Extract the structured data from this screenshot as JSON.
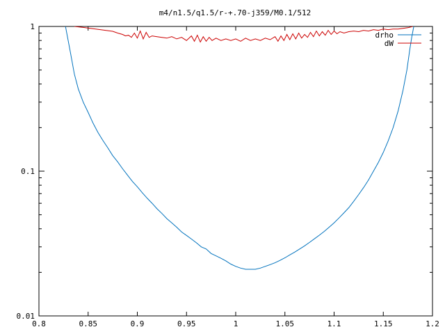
{
  "chart_data": {
    "type": "line",
    "title": "m4/n1.5/q1.5/r-+.70-j359/M0.1/512",
    "xlabel": "",
    "ylabel": "",
    "xlim": [
      0.8,
      1.2
    ],
    "ylim": [
      0.01,
      1
    ],
    "yscale": "log",
    "grid": false,
    "legend_position": "top-right",
    "x_ticks": [
      {
        "value": 0.8,
        "label": "0.8"
      },
      {
        "value": 0.85,
        "label": "0.85"
      },
      {
        "value": 0.9,
        "label": "0.9"
      },
      {
        "value": 0.95,
        "label": "0.95"
      },
      {
        "value": 1.0,
        "label": "1"
      },
      {
        "value": 1.05,
        "label": "1.05"
      },
      {
        "value": 1.1,
        "label": "1.1"
      },
      {
        "value": 1.15,
        "label": "1.15"
      },
      {
        "value": 1.2,
        "label": "1.2"
      }
    ],
    "y_ticks": [
      {
        "value": 0.01,
        "label": "0.01"
      },
      {
        "value": 0.1,
        "label": "0.1"
      },
      {
        "value": 1,
        "label": "1"
      }
    ],
    "series": [
      {
        "name": "drho",
        "color": "#0072bd",
        "points": [
          [
            0.827,
            1.0
          ],
          [
            0.832,
            0.66
          ],
          [
            0.836,
            0.47
          ],
          [
            0.84,
            0.37
          ],
          [
            0.845,
            0.3
          ],
          [
            0.85,
            0.255
          ],
          [
            0.855,
            0.215
          ],
          [
            0.86,
            0.185
          ],
          [
            0.865,
            0.163
          ],
          [
            0.87,
            0.145
          ],
          [
            0.875,
            0.128
          ],
          [
            0.88,
            0.116
          ],
          [
            0.885,
            0.104
          ],
          [
            0.89,
            0.094
          ],
          [
            0.895,
            0.085
          ],
          [
            0.9,
            0.078
          ],
          [
            0.905,
            0.071
          ],
          [
            0.91,
            0.065
          ],
          [
            0.915,
            0.06
          ],
          [
            0.92,
            0.055
          ],
          [
            0.925,
            0.051
          ],
          [
            0.93,
            0.047
          ],
          [
            0.935,
            0.044
          ],
          [
            0.94,
            0.041
          ],
          [
            0.945,
            0.038
          ],
          [
            0.95,
            0.036
          ],
          [
            0.955,
            0.034
          ],
          [
            0.96,
            0.032
          ],
          [
            0.965,
            0.03
          ],
          [
            0.97,
            0.029
          ],
          [
            0.975,
            0.027
          ],
          [
            0.98,
            0.026
          ],
          [
            0.985,
            0.025
          ],
          [
            0.99,
            0.024
          ],
          [
            0.995,
            0.0228
          ],
          [
            1.0,
            0.022
          ],
          [
            1.005,
            0.0214
          ],
          [
            1.01,
            0.021
          ],
          [
            1.015,
            0.021
          ],
          [
            1.02,
            0.021
          ],
          [
            1.025,
            0.0214
          ],
          [
            1.03,
            0.022
          ],
          [
            1.035,
            0.0226
          ],
          [
            1.04,
            0.0233
          ],
          [
            1.045,
            0.0242
          ],
          [
            1.05,
            0.0252
          ],
          [
            1.055,
            0.0264
          ],
          [
            1.06,
            0.0276
          ],
          [
            1.065,
            0.029
          ],
          [
            1.07,
            0.0305
          ],
          [
            1.075,
            0.0322
          ],
          [
            1.08,
            0.0341
          ],
          [
            1.085,
            0.0361
          ],
          [
            1.09,
            0.0384
          ],
          [
            1.095,
            0.041
          ],
          [
            1.1,
            0.044
          ],
          [
            1.105,
            0.0475
          ],
          [
            1.11,
            0.0515
          ],
          [
            1.115,
            0.056
          ],
          [
            1.12,
            0.062
          ],
          [
            1.125,
            0.069
          ],
          [
            1.13,
            0.077
          ],
          [
            1.135,
            0.087
          ],
          [
            1.14,
            0.1
          ],
          [
            1.145,
            0.115
          ],
          [
            1.15,
            0.135
          ],
          [
            1.155,
            0.162
          ],
          [
            1.16,
            0.2
          ],
          [
            1.165,
            0.26
          ],
          [
            1.17,
            0.36
          ],
          [
            1.174,
            0.5
          ],
          [
            1.177,
            0.7
          ],
          [
            1.179,
            0.85
          ],
          [
            1.181,
            1.0
          ]
        ]
      },
      {
        "name": "dW",
        "color": "#cc0000",
        "points": [
          [
            0.836,
            1.0
          ],
          [
            0.845,
            0.985
          ],
          [
            0.855,
            0.965
          ],
          [
            0.865,
            0.945
          ],
          [
            0.875,
            0.925
          ],
          [
            0.88,
            0.9
          ],
          [
            0.885,
            0.88
          ],
          [
            0.888,
            0.86
          ],
          [
            0.891,
            0.87
          ],
          [
            0.894,
            0.84
          ],
          [
            0.897,
            0.9
          ],
          [
            0.9,
            0.83
          ],
          [
            0.903,
            0.93
          ],
          [
            0.906,
            0.82
          ],
          [
            0.909,
            0.91
          ],
          [
            0.912,
            0.84
          ],
          [
            0.915,
            0.86
          ],
          [
            0.92,
            0.85
          ],
          [
            0.925,
            0.84
          ],
          [
            0.93,
            0.83
          ],
          [
            0.935,
            0.85
          ],
          [
            0.94,
            0.82
          ],
          [
            0.945,
            0.84
          ],
          [
            0.95,
            0.8
          ],
          [
            0.955,
            0.86
          ],
          [
            0.958,
            0.79
          ],
          [
            0.961,
            0.87
          ],
          [
            0.964,
            0.78
          ],
          [
            0.967,
            0.85
          ],
          [
            0.97,
            0.79
          ],
          [
            0.973,
            0.84
          ],
          [
            0.976,
            0.8
          ],
          [
            0.98,
            0.83
          ],
          [
            0.985,
            0.8
          ],
          [
            0.99,
            0.82
          ],
          [
            0.995,
            0.8
          ],
          [
            1.0,
            0.82
          ],
          [
            1.005,
            0.79
          ],
          [
            1.01,
            0.83
          ],
          [
            1.015,
            0.8
          ],
          [
            1.02,
            0.82
          ],
          [
            1.025,
            0.8
          ],
          [
            1.03,
            0.83
          ],
          [
            1.035,
            0.81
          ],
          [
            1.04,
            0.85
          ],
          [
            1.043,
            0.79
          ],
          [
            1.046,
            0.86
          ],
          [
            1.049,
            0.8
          ],
          [
            1.052,
            0.88
          ],
          [
            1.055,
            0.81
          ],
          [
            1.058,
            0.89
          ],
          [
            1.061,
            0.82
          ],
          [
            1.064,
            0.9
          ],
          [
            1.067,
            0.83
          ],
          [
            1.07,
            0.88
          ],
          [
            1.073,
            0.84
          ],
          [
            1.076,
            0.91
          ],
          [
            1.079,
            0.85
          ],
          [
            1.082,
            0.93
          ],
          [
            1.085,
            0.86
          ],
          [
            1.088,
            0.92
          ],
          [
            1.091,
            0.87
          ],
          [
            1.094,
            0.94
          ],
          [
            1.097,
            0.88
          ],
          [
            1.1,
            0.93
          ],
          [
            1.103,
            0.89
          ],
          [
            1.106,
            0.92
          ],
          [
            1.11,
            0.9
          ],
          [
            1.115,
            0.92
          ],
          [
            1.12,
            0.93
          ],
          [
            1.125,
            0.92
          ],
          [
            1.13,
            0.94
          ],
          [
            1.135,
            0.93
          ],
          [
            1.14,
            0.95
          ],
          [
            1.145,
            0.94
          ],
          [
            1.15,
            0.96
          ],
          [
            1.155,
            0.95
          ],
          [
            1.16,
            0.96
          ],
          [
            1.165,
            0.96
          ],
          [
            1.17,
            0.97
          ],
          [
            1.175,
            0.98
          ],
          [
            1.18,
            1.0
          ]
        ]
      }
    ]
  }
}
